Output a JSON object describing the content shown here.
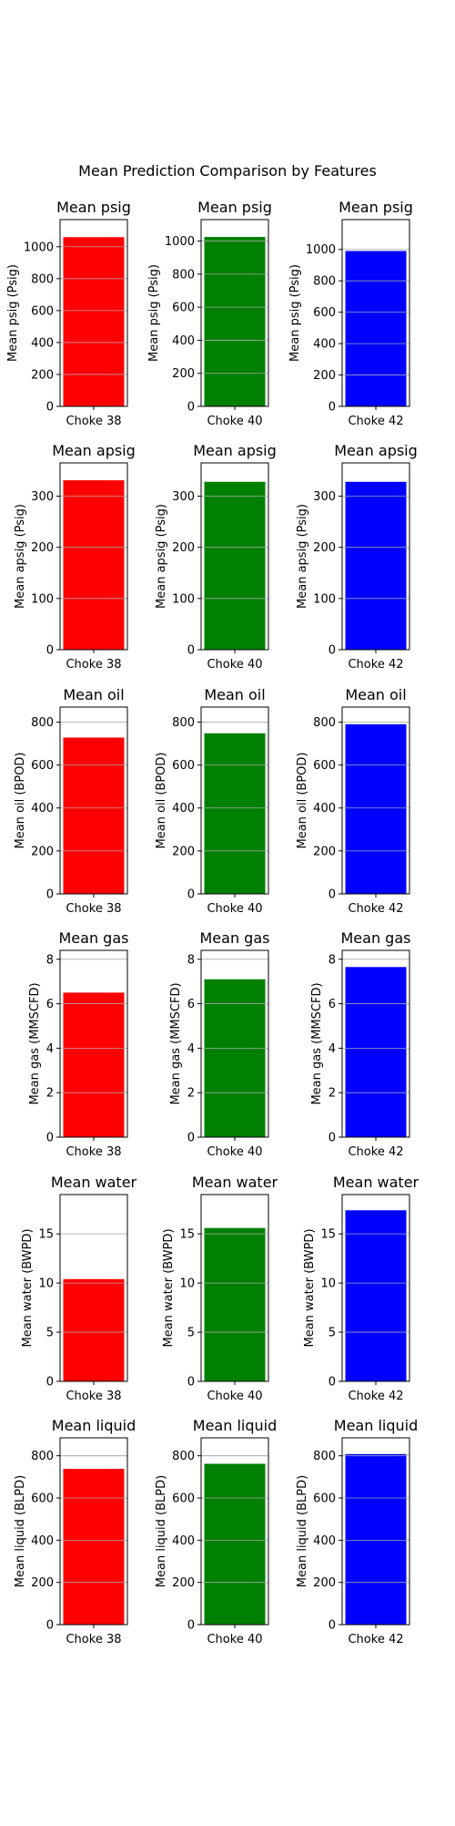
{
  "figure": {
    "title": "Mean Prediction Comparison by Features"
  },
  "chart_data": [
    {
      "type": "bar",
      "title": "Mean psig",
      "categories": [
        "Choke 38"
      ],
      "values": [
        1060
      ],
      "ylabel": "Mean psig (Psig)",
      "ylim": [
        0,
        1170
      ],
      "yticks": [
        0,
        200,
        400,
        600,
        800,
        1000
      ],
      "grid": true,
      "color": "#ff0000"
    },
    {
      "type": "bar",
      "title": "Mean psig",
      "categories": [
        "Choke 40"
      ],
      "values": [
        1025
      ],
      "ylabel": "Mean psig (Psig)",
      "ylim": [
        0,
        1130
      ],
      "yticks": [
        0,
        200,
        400,
        600,
        800,
        1000
      ],
      "grid": true,
      "color": "#008000"
    },
    {
      "type": "bar",
      "title": "Mean psig",
      "categories": [
        "Choke 42"
      ],
      "values": [
        990
      ],
      "ylabel": "Mean psig (Psig)",
      "ylim": [
        0,
        1190
      ],
      "yticks": [
        0,
        200,
        400,
        600,
        800,
        1000
      ],
      "grid": true,
      "color": "#0000ff"
    },
    {
      "type": "bar",
      "title": "Mean apsig",
      "categories": [
        "Choke 38"
      ],
      "values": [
        331
      ],
      "ylabel": "Mean apsig (Psig)",
      "ylim": [
        0,
        365
      ],
      "yticks": [
        0,
        100,
        200,
        300
      ],
      "grid": true,
      "color": "#ff0000"
    },
    {
      "type": "bar",
      "title": "Mean apsig",
      "categories": [
        "Choke 40"
      ],
      "values": [
        328
      ],
      "ylabel": "Mean apsig (Psig)",
      "ylim": [
        0,
        365
      ],
      "yticks": [
        0,
        100,
        200,
        300
      ],
      "grid": true,
      "color": "#008000"
    },
    {
      "type": "bar",
      "title": "Mean apsig",
      "categories": [
        "Choke 42"
      ],
      "values": [
        328
      ],
      "ylabel": "Mean apsig (Psig)",
      "ylim": [
        0,
        365
      ],
      "yticks": [
        0,
        100,
        200,
        300
      ],
      "grid": true,
      "color": "#0000ff"
    },
    {
      "type": "bar",
      "title": "Mean oil",
      "categories": [
        "Choke 38"
      ],
      "values": [
        728
      ],
      "ylabel": "Mean oil (BPOD)",
      "ylim": [
        0,
        870
      ],
      "yticks": [
        0,
        200,
        400,
        600,
        800
      ],
      "grid": true,
      "color": "#ff0000"
    },
    {
      "type": "bar",
      "title": "Mean oil",
      "categories": [
        "Choke 40"
      ],
      "values": [
        748
      ],
      "ylabel": "Mean oil (BPOD)",
      "ylim": [
        0,
        870
      ],
      "yticks": [
        0,
        200,
        400,
        600,
        800
      ],
      "grid": true,
      "color": "#008000"
    },
    {
      "type": "bar",
      "title": "Mean oil",
      "categories": [
        "Choke 42"
      ],
      "values": [
        790
      ],
      "ylabel": "Mean oil (BPOD)",
      "ylim": [
        0,
        870
      ],
      "yticks": [
        0,
        200,
        400,
        600,
        800
      ],
      "grid": true,
      "color": "#0000ff"
    },
    {
      "type": "bar",
      "title": "Mean gas",
      "categories": [
        "Choke 38"
      ],
      "values": [
        6.5
      ],
      "ylabel": "Mean gas (MMSCFD)",
      "ylim": [
        0,
        8.4
      ],
      "yticks": [
        0,
        2,
        4,
        6,
        8
      ],
      "grid": true,
      "color": "#ff0000"
    },
    {
      "type": "bar",
      "title": "Mean gas",
      "categories": [
        "Choke 40"
      ],
      "values": [
        7.1
      ],
      "ylabel": "Mean gas (MMSCFD)",
      "ylim": [
        0,
        8.4
      ],
      "yticks": [
        0,
        2,
        4,
        6,
        8
      ],
      "grid": true,
      "color": "#008000"
    },
    {
      "type": "bar",
      "title": "Mean gas",
      "categories": [
        "Choke 42"
      ],
      "values": [
        7.65
      ],
      "ylabel": "Mean gas (MMSCFD)",
      "ylim": [
        0,
        8.4
      ],
      "yticks": [
        0,
        2,
        4,
        6,
        8
      ],
      "grid": true,
      "color": "#0000ff"
    },
    {
      "type": "bar",
      "title": "Mean water",
      "categories": [
        "Choke 38"
      ],
      "values": [
        10.4
      ],
      "ylabel": "Mean water (BWPD)",
      "ylim": [
        0,
        19
      ],
      "yticks": [
        0,
        5,
        10,
        15
      ],
      "grid": true,
      "color": "#ff0000"
    },
    {
      "type": "bar",
      "title": "Mean water",
      "categories": [
        "Choke 40"
      ],
      "values": [
        15.6
      ],
      "ylabel": "Mean water (BWPD)",
      "ylim": [
        0,
        19
      ],
      "yticks": [
        0,
        5,
        10,
        15
      ],
      "grid": true,
      "color": "#008000"
    },
    {
      "type": "bar",
      "title": "Mean water",
      "categories": [
        "Choke 42"
      ],
      "values": [
        17.4
      ],
      "ylabel": "Mean water (BWPD)",
      "ylim": [
        0,
        19
      ],
      "yticks": [
        0,
        5,
        10,
        15
      ],
      "grid": true,
      "color": "#0000ff"
    },
    {
      "type": "bar",
      "title": "Mean liquid",
      "categories": [
        "Choke 38"
      ],
      "values": [
        738
      ],
      "ylabel": "Mean liquid (BLPD)",
      "ylim": [
        0,
        885
      ],
      "yticks": [
        0,
        200,
        400,
        600,
        800
      ],
      "grid": true,
      "color": "#ff0000"
    },
    {
      "type": "bar",
      "title": "Mean liquid",
      "categories": [
        "Choke 40"
      ],
      "values": [
        762
      ],
      "ylabel": "Mean liquid (BLPD)",
      "ylim": [
        0,
        885
      ],
      "yticks": [
        0,
        200,
        400,
        600,
        800
      ],
      "grid": true,
      "color": "#008000"
    },
    {
      "type": "bar",
      "title": "Mean liquid",
      "categories": [
        "Choke 42"
      ],
      "values": [
        808
      ],
      "ylabel": "Mean liquid (BLPD)",
      "ylim": [
        0,
        885
      ],
      "yticks": [
        0,
        200,
        400,
        600,
        800
      ],
      "grid": true,
      "color": "#0000ff"
    }
  ]
}
